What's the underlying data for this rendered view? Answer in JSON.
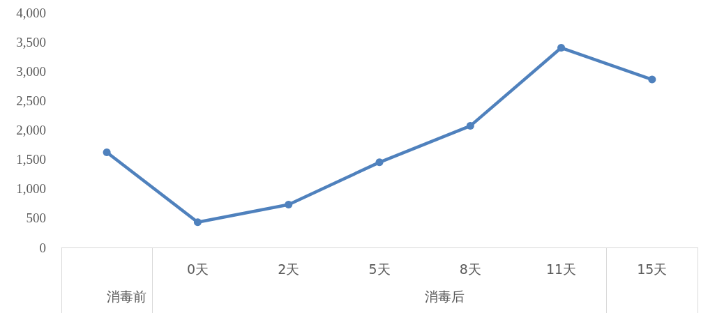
{
  "chart_data": {
    "type": "line",
    "categories": [
      null,
      "0天",
      "2天",
      "5天",
      "8天",
      "11天",
      "15天"
    ],
    "series": [
      {
        "color": "#4f81bd",
        "values": [
          1620,
          430,
          730,
          1450,
          2070,
          3400,
          2860
        ]
      }
    ],
    "annotations": [
      "消毒前",
      "消毒后"
    ],
    "ylim": [
      0,
      4000
    ],
    "yticks": [
      {
        "value": 0,
        "label": "0"
      },
      {
        "value": 500,
        "label": "500"
      },
      {
        "value": 1000,
        "label": "1,000"
      },
      {
        "value": 1500,
        "label": "1,500"
      },
      {
        "value": 2000,
        "label": "2,000"
      },
      {
        "value": 2500,
        "label": "2,500"
      },
      {
        "value": 3000,
        "label": "3,000"
      },
      {
        "value": 3500,
        "label": "3,500"
      },
      {
        "value": 4000,
        "label": "4,000"
      }
    ],
    "grid": false,
    "marker": "circle",
    "line_style": "solid"
  }
}
